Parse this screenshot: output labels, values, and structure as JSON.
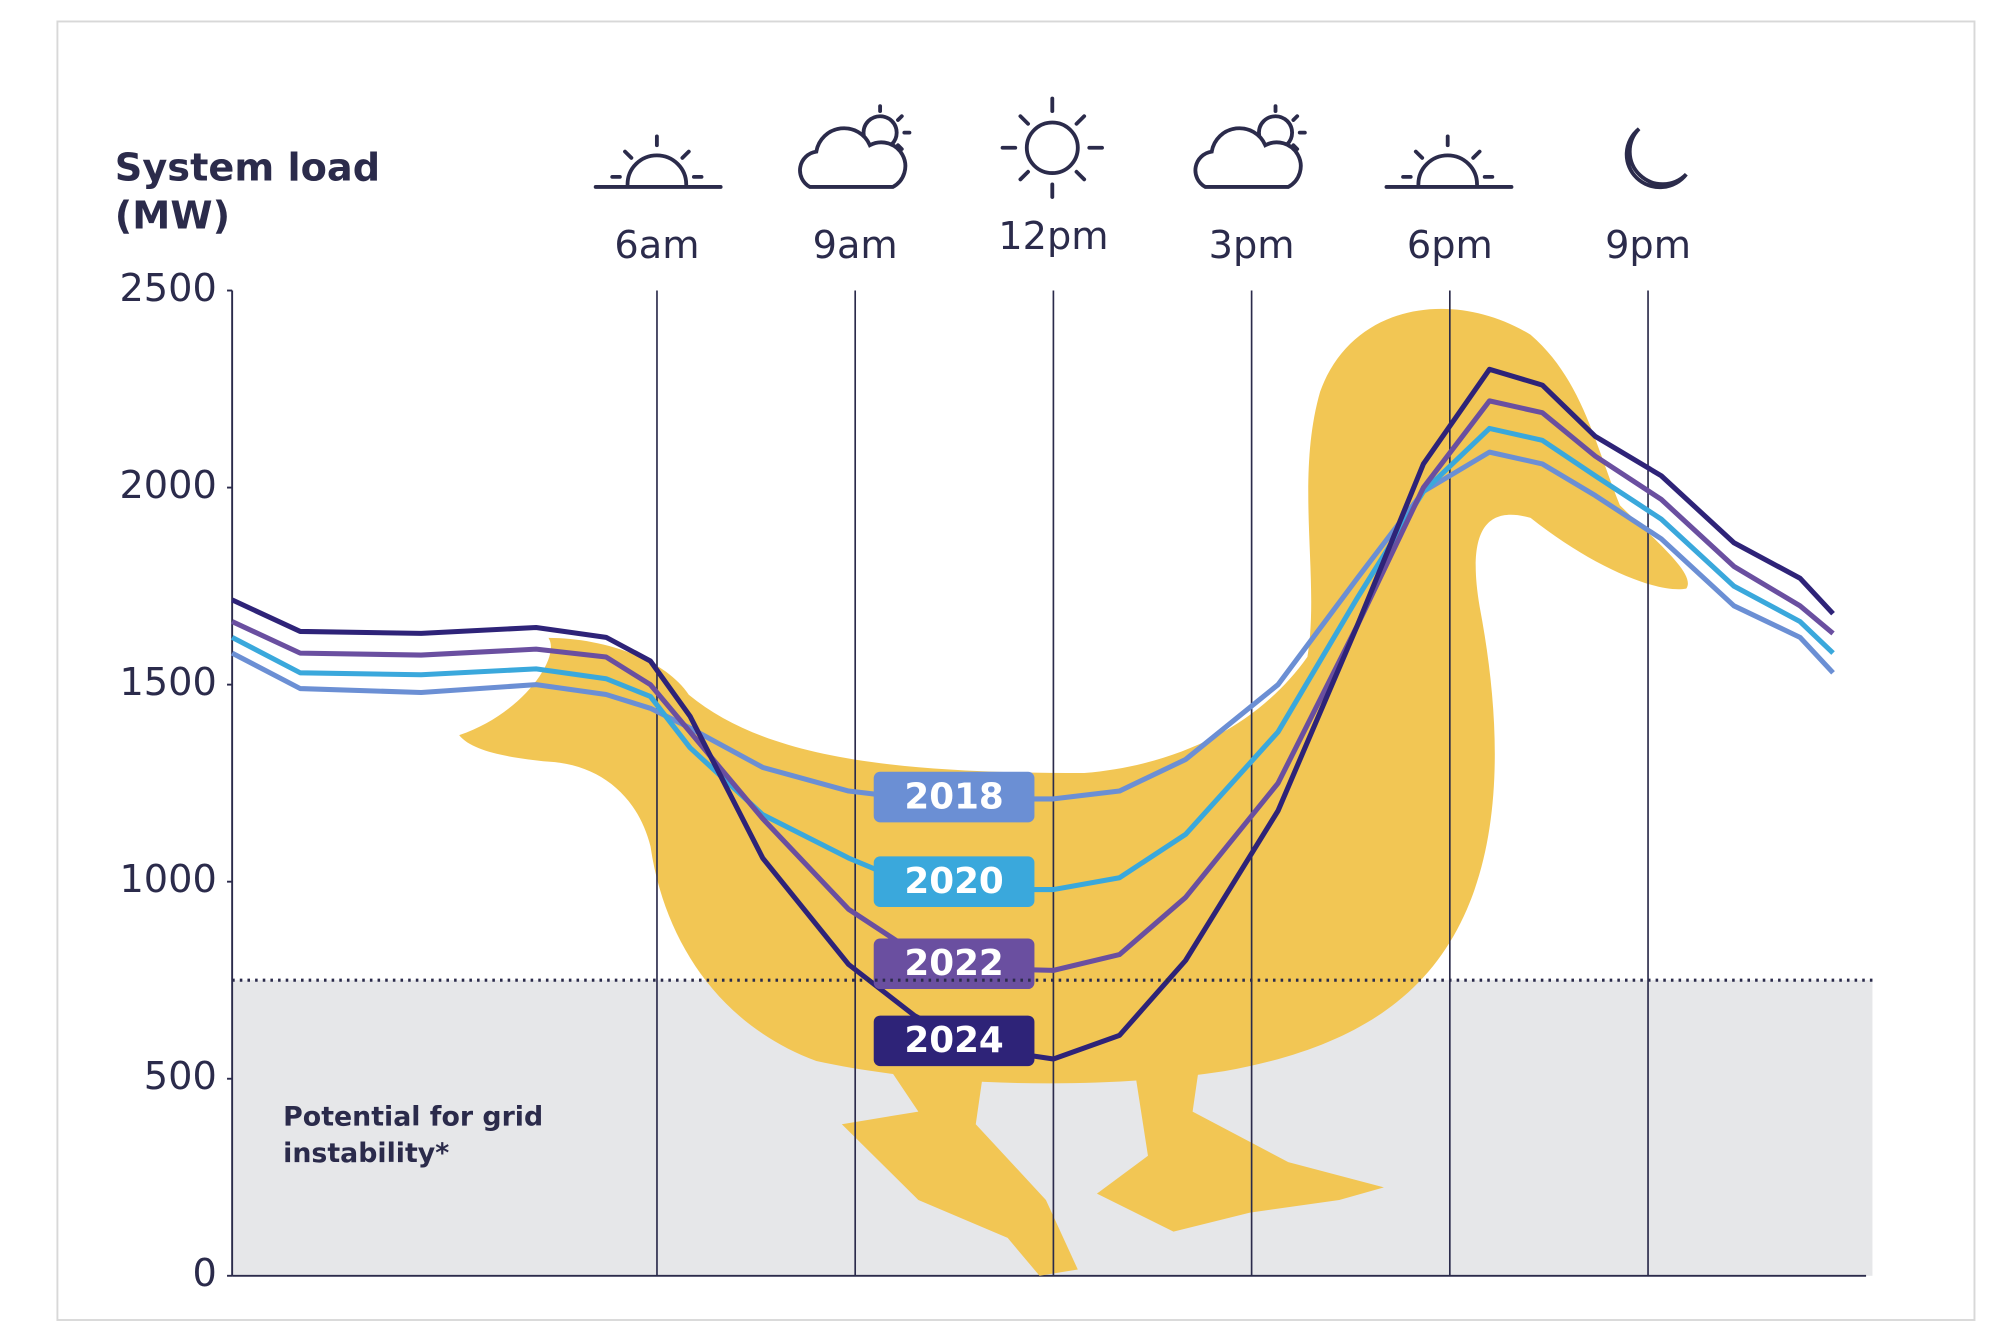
{
  "chart_data": {
    "type": "line",
    "title": "System load (MW)",
    "x": [
      -0.43,
      0.6,
      2.43,
      4.17,
      5.23,
      5.9,
      6.5,
      7.6,
      8.9,
      9.9,
      10.8,
      12,
      13,
      14,
      15.4,
      16.6,
      17.6,
      18.6,
      19.4,
      20.2,
      21.2,
      22.3,
      23.3,
      23.8
    ],
    "series": [
      {
        "name": "2018",
        "color": "#6b8fd4",
        "values": [
          1580,
          1490,
          1480,
          1500,
          1475,
          1440,
          1390,
          1290,
          1230,
          1210,
          1210,
          1210,
          1230,
          1310,
          1500,
          1770,
          1990,
          2090,
          2060,
          1980,
          1870,
          1700,
          1620,
          1530
        ]
      },
      {
        "name": "2020",
        "color": "#3aa8dc",
        "values": [
          1620,
          1530,
          1525,
          1540,
          1515,
          1470,
          1340,
          1170,
          1060,
          990,
          980,
          980,
          1010,
          1120,
          1380,
          1720,
          1990,
          2150,
          2120,
          2030,
          1920,
          1750,
          1660,
          1580
        ]
      },
      {
        "name": "2022",
        "color": "#6a4fa0",
        "values": [
          1660,
          1580,
          1575,
          1590,
          1570,
          1500,
          1380,
          1160,
          930,
          820,
          780,
          775,
          815,
          960,
          1250,
          1650,
          2000,
          2220,
          2190,
          2080,
          1970,
          1800,
          1700,
          1630
        ]
      },
      {
        "name": "2024",
        "color": "#2e2378",
        "values": [
          1715,
          1635,
          1630,
          1645,
          1620,
          1560,
          1420,
          1060,
          790,
          660,
          580,
          550,
          610,
          800,
          1180,
          1650,
          2060,
          2300,
          2260,
          2130,
          2030,
          1860,
          1770,
          1680
        ]
      }
    ],
    "xlim": [
      -0.43,
      24.3
    ],
    "xticks": [
      {
        "value": 6,
        "label": "6am"
      },
      {
        "value": 9,
        "label": "9am"
      },
      {
        "value": 12,
        "label": "12pm"
      },
      {
        "value": 15,
        "label": "3pm"
      },
      {
        "value": 18,
        "label": "6pm"
      },
      {
        "value": 21,
        "label": "9pm"
      }
    ],
    "ylim": [
      0,
      2500
    ],
    "yticks": [
      0,
      500,
      1000,
      1500,
      2000,
      2500
    ],
    "threshold": {
      "value": 750,
      "label": "Potential for grid instability*"
    },
    "grid": true
  }
}
